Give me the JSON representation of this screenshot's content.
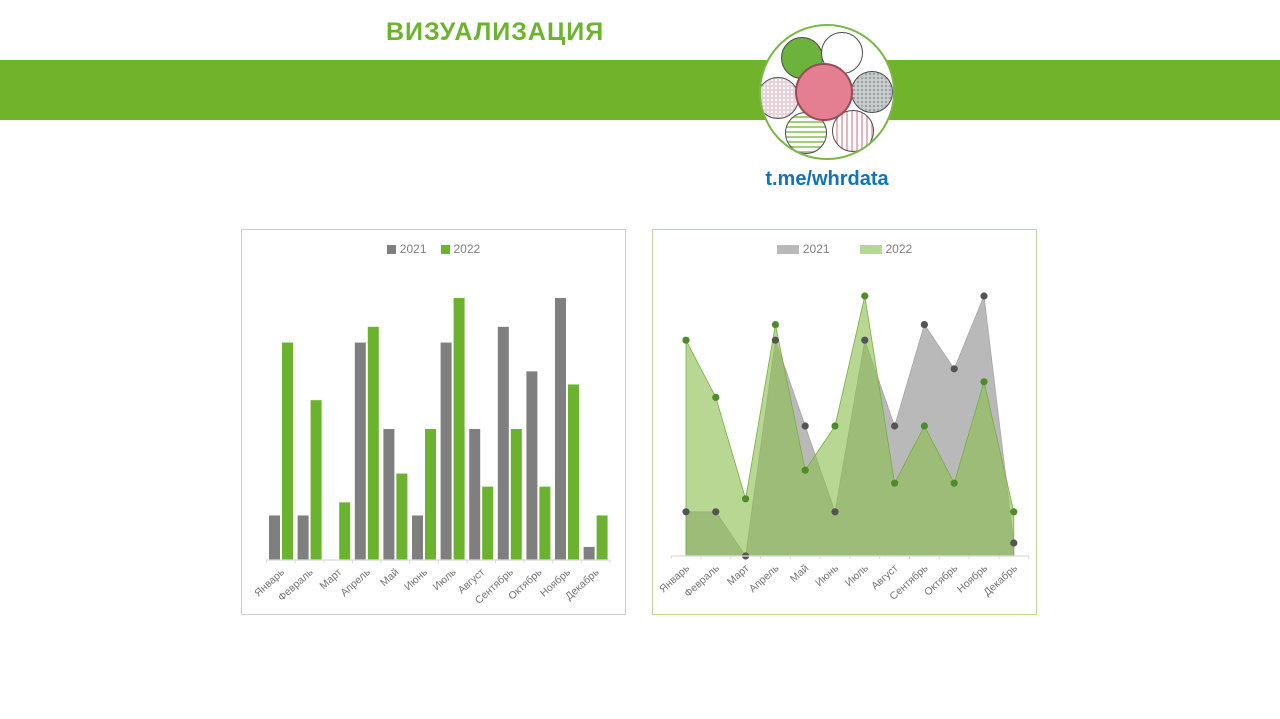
{
  "header": {
    "title": "ВИЗУАЛИЗАЦИЯ",
    "title_color": "#6cb32e",
    "banner_color": "#72b32c",
    "link_text": "t.me/whrdata",
    "link_color": "#1173b8"
  },
  "logo": {
    "icon": "flower-logo",
    "ring_color": "#7ab648",
    "center_color": "#e37f90",
    "petals": [
      "solid-green",
      "white",
      "gray-checker",
      "pink-vertical-stripes",
      "green-horizontal-stripes",
      "pink-dotted"
    ]
  },
  "chart_data": [
    {
      "type": "bar",
      "title": "",
      "xlabel": "",
      "ylabel": "",
      "ylim": [
        0,
        100
      ],
      "grid": false,
      "legend_position": "top-center-inside",
      "categories": [
        "Январь",
        "Февраль",
        "Март",
        "Апрель",
        "Май",
        "Июнь",
        "Июль",
        "Август",
        "Сентябрь",
        "Октябрь",
        "Ноябрь",
        "Декабрь"
      ],
      "series": [
        {
          "name": "2021",
          "color": "#7f7f7f",
          "values": [
            17,
            17,
            0,
            83,
            50,
            17,
            83,
            50,
            89,
            72,
            100,
            5
          ]
        },
        {
          "name": "2022",
          "color": "#6bb22e",
          "values": [
            83,
            61,
            22,
            89,
            33,
            50,
            100,
            28,
            50,
            28,
            67,
            17
          ]
        }
      ],
      "axis_color": "#d9d9d9",
      "label_color": "#737373"
    },
    {
      "type": "area",
      "title": "",
      "xlabel": "",
      "ylabel": "",
      "ylim": [
        0,
        100
      ],
      "grid": false,
      "legend_position": "top-center-inside",
      "categories": [
        "Январь",
        "Февраль",
        "Март",
        "Апрель",
        "Май",
        "Июнь",
        "Июль",
        "Август",
        "Сентябрь",
        "Октябрь",
        "Ноябрь",
        "Декабрь"
      ],
      "series": [
        {
          "name": "2021",
          "color": "#b9b9b9",
          "opacity": 1,
          "marker_color": "#545454",
          "values": [
            17,
            17,
            0,
            83,
            50,
            17,
            83,
            50,
            89,
            72,
            100,
            5
          ]
        },
        {
          "name": "2022",
          "color": "#8dbf51",
          "opacity": 0.62,
          "marker_color": "#4e8c2a",
          "values": [
            83,
            61,
            22,
            89,
            33,
            50,
            100,
            28,
            50,
            28,
            67,
            17
          ]
        }
      ],
      "axis_color": "#d9d9d9",
      "label_color": "#737373"
    }
  ]
}
